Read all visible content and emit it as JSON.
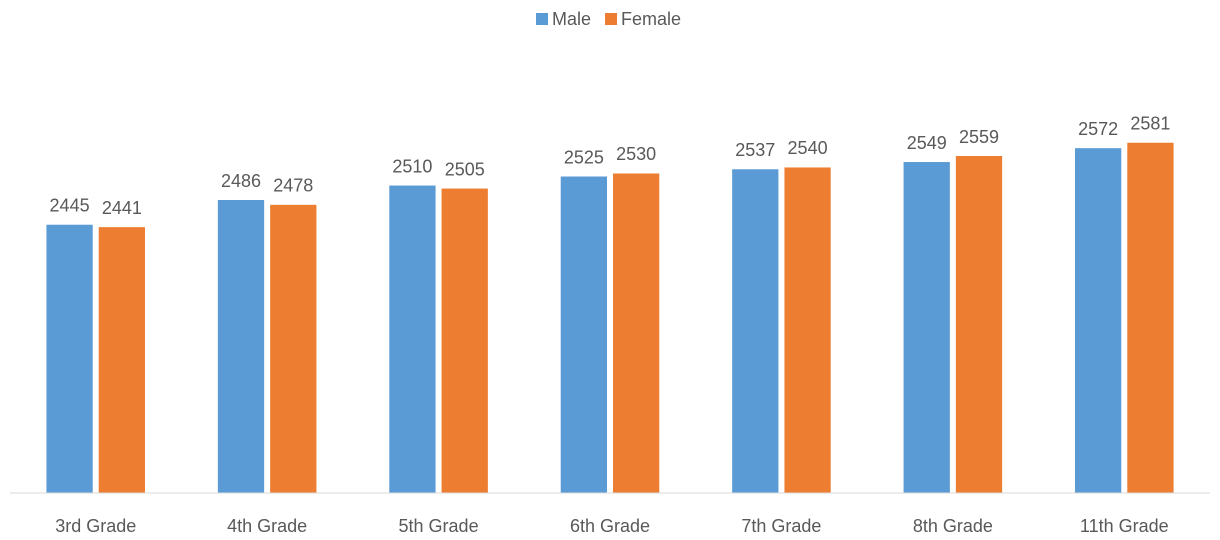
{
  "chart_data": {
    "type": "bar",
    "categories": [
      "3rd Grade",
      "4th Grade",
      "5th Grade",
      "6th Grade",
      "7th Grade",
      "8th Grade",
      "11th Grade"
    ],
    "series": [
      {
        "name": "Male",
        "color": "#5b9bd5",
        "values": [
          2445,
          2486,
          2510,
          2525,
          2537,
          2549,
          2572
        ]
      },
      {
        "name": "Female",
        "color": "#ed7d31",
        "values": [
          2441,
          2478,
          2505,
          2530,
          2540,
          2559,
          2581
        ]
      }
    ],
    "ylim": [
      2000,
      2700
    ],
    "legend": "top"
  }
}
